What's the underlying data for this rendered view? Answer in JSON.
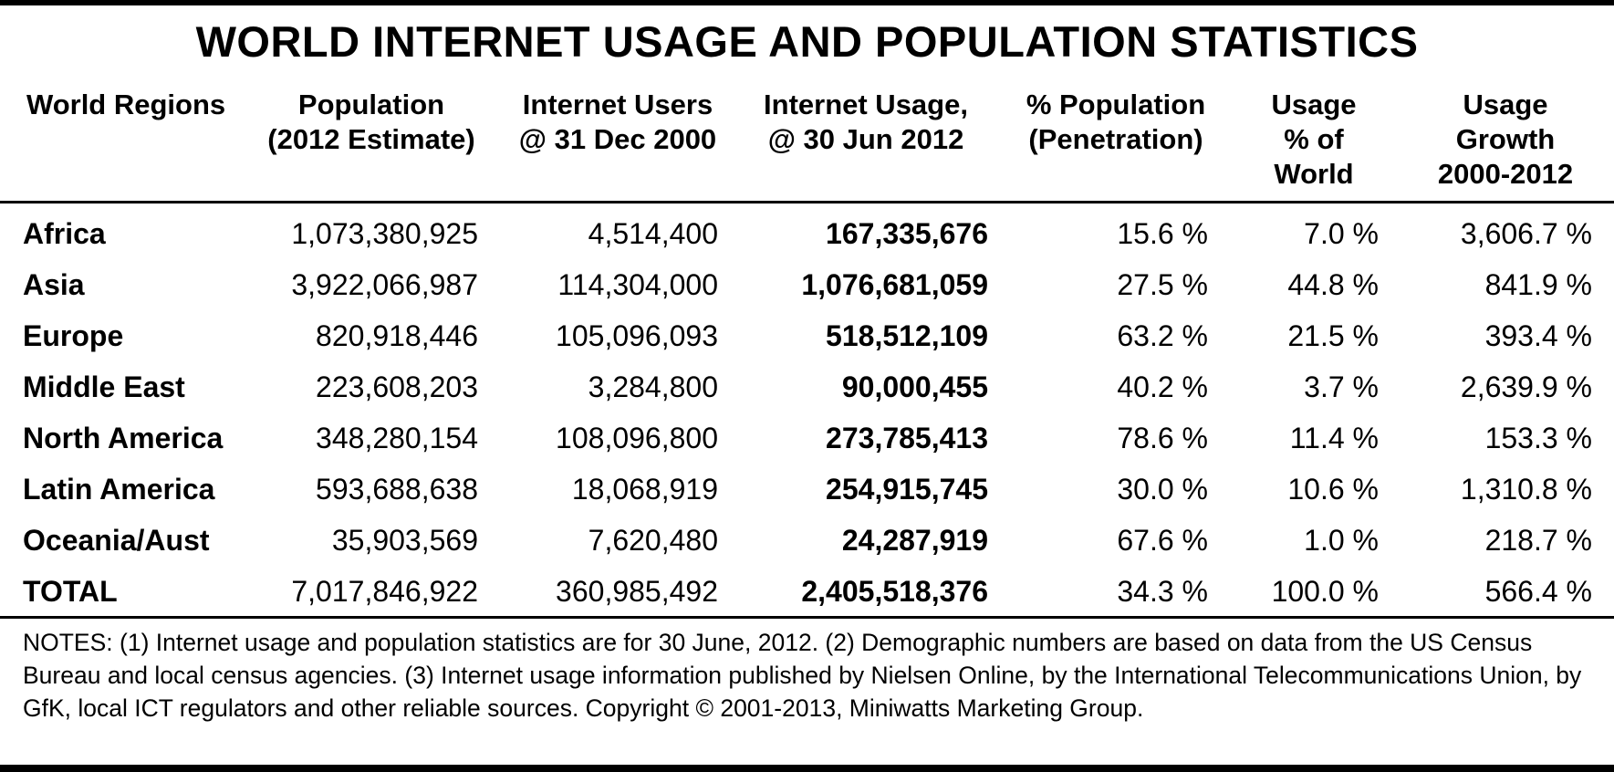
{
  "title": "WORLD INTERNET USAGE AND POPULATION STATISTICS",
  "headers": [
    "World Regions",
    "Population\n(2012 Estimate)",
    "Internet Users\n@ 31 Dec 2000",
    "Internet Usage,\n@ 30 Jun 2012",
    "% Population\n(Penetration)",
    "Usage\n% of\nWorld",
    "Usage\nGrowth\n2000-2012"
  ],
  "rows": [
    [
      "Africa",
      "1,073,380,925",
      "4,514,400",
      "167,335,676",
      "15.6 %",
      "7.0 %",
      "3,606.7 %"
    ],
    [
      "Asia",
      "3,922,066,987",
      "114,304,000",
      "1,076,681,059",
      "27.5 %",
      "44.8 %",
      "841.9 %"
    ],
    [
      "Europe",
      "820,918,446",
      "105,096,093",
      "518,512,109",
      "63.2 %",
      "21.5 %",
      "393.4 %"
    ],
    [
      "Middle East",
      "223,608,203",
      "3,284,800",
      "90,000,455",
      "40.2 %",
      "3.7 %",
      "2,639.9 %"
    ],
    [
      "North America",
      "348,280,154",
      "108,096,800",
      "273,785,413",
      "78.6 %",
      "11.4 %",
      "153.3 %"
    ],
    [
      "Latin America",
      "593,688,638",
      "18,068,919",
      "254,915,745",
      "30.0 %",
      "10.6 %",
      "1,310.8 %"
    ],
    [
      "Oceania/Aust",
      "35,903,569",
      "7,620,480",
      "24,287,919",
      "67.6 %",
      "1.0 %",
      "218.7 %"
    ],
    [
      "TOTAL",
      "7,017,846,922",
      "360,985,492",
      "2,405,518,376",
      "34.3 %",
      "100.0 %",
      "566.4 %"
    ]
  ],
  "notes": "NOTES: (1) Internet usage and population statistics are for 30 June, 2012. (2) Demographic numbers are based on data from the US Census Bureau and local census agencies. (3) Internet usage information published by Nielsen Online, by the International Telecommunications Union, by GfK, local ICT regulators and other reliable sources. Copyright © 2001-2013, Miniwatts Marketing Group."
}
